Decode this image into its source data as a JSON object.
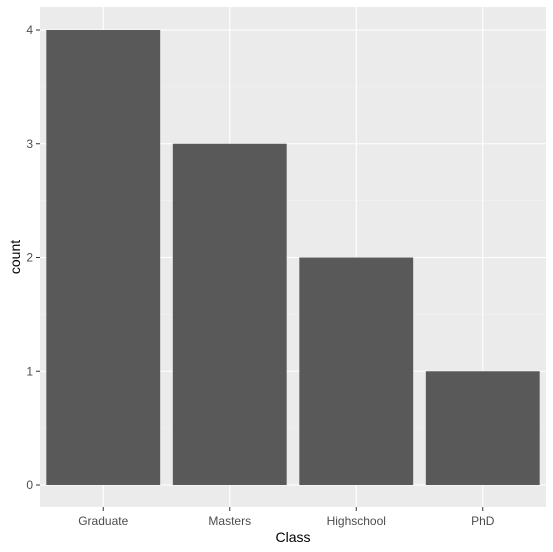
{
  "chart_data": {
    "type": "bar",
    "categories": [
      "Graduate",
      "Masters",
      "Highschool",
      "PhD"
    ],
    "values": [
      4,
      3,
      2,
      1
    ],
    "xlabel": "Class",
    "ylabel": "count",
    "ylim": [
      0,
      4.2
    ],
    "yticks": [
      0,
      1,
      2,
      3,
      4
    ],
    "grid": true,
    "legend": "none",
    "colors": {
      "panel_background": "#ebebeb",
      "grid_major": "#ffffff",
      "grid_minor": "#f5f5f5",
      "bar_fill": "#595959",
      "tick_text": "#4d4d4d",
      "tick_mark": "#333333",
      "title_text": "#000000"
    }
  }
}
